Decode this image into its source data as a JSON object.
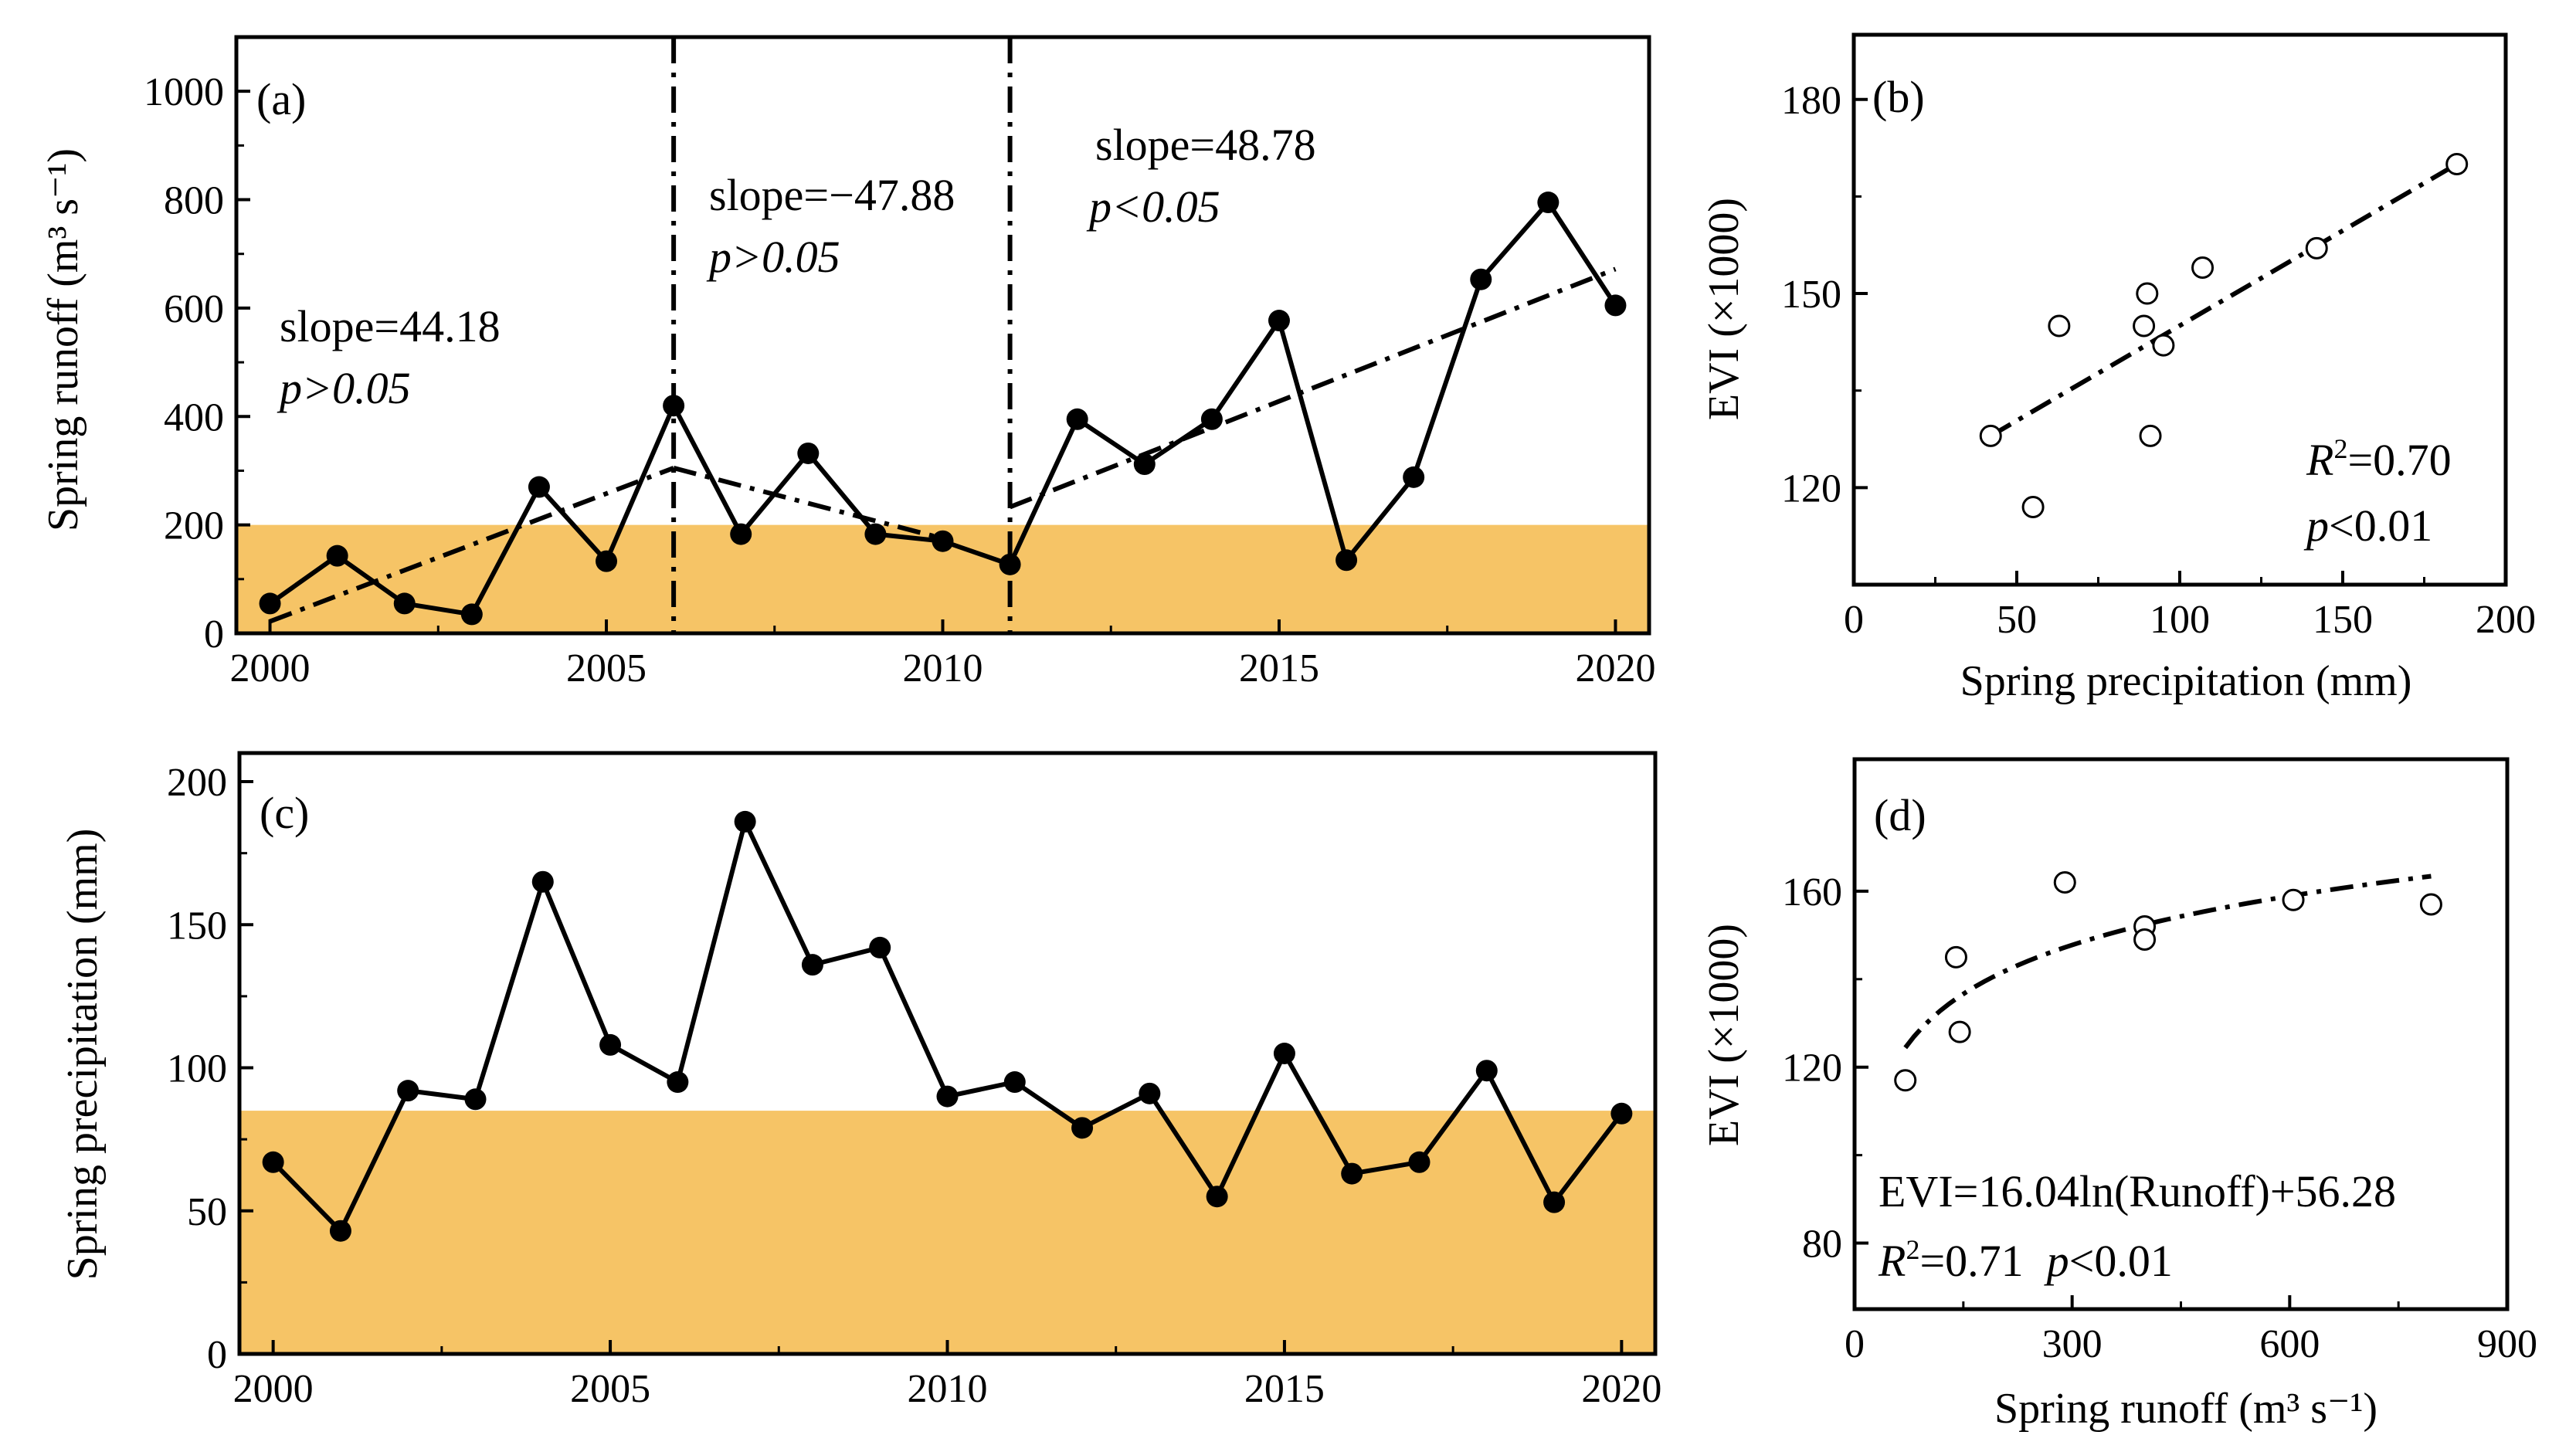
{
  "colors": {
    "shade": "#F6C466",
    "line": "#000000",
    "background": "#FFFFFF"
  },
  "chart_data": [
    {
      "panel": "(a)",
      "type": "line",
      "x": [
        2000,
        2001,
        2002,
        2003,
        2004,
        2005,
        2006,
        2007,
        2008,
        2009,
        2010,
        2011,
        2012,
        2013,
        2014,
        2015,
        2016,
        2017,
        2018,
        2019,
        2020
      ],
      "values": [
        55,
        143,
        55,
        35,
        270,
        133,
        420,
        183,
        332,
        183,
        170,
        127,
        395,
        312,
        395,
        577,
        135,
        288,
        653,
        795,
        605
      ],
      "xlim": [
        1999.5,
        2020.5
      ],
      "ylim": [
        0,
        1100
      ],
      "xticks": [
        2000,
        2005,
        2010,
        2015,
        2020
      ],
      "yticks": [
        0,
        200,
        400,
        600,
        800,
        1000
      ],
      "ylabel": "Spring runoff (m³ s⁻¹)",
      "shade_below": 200,
      "breakpoints": [
        2006,
        2011
      ],
      "trends": [
        {
          "x0": 2000,
          "y0": 22,
          "x1": 2006,
          "y1": 305,
          "slope_label": "slope=44.18",
          "p_label": "p>0.05"
        },
        {
          "x0": 2006,
          "y0": 305,
          "x1": 2010,
          "y1": 175,
          "slope_label": "slope=−47.88",
          "p_label": "p>0.05"
        },
        {
          "x0": 2011,
          "y0": 233,
          "x1": 2020,
          "y1": 672,
          "slope_label": "slope=48.78",
          "p_label": "p<0.05"
        }
      ]
    },
    {
      "panel": "(b)",
      "type": "scatter",
      "x": [
        42,
        55,
        63,
        89,
        90,
        91,
        95,
        107,
        142,
        185
      ],
      "y": [
        128,
        117,
        145,
        145,
        150,
        128,
        142,
        154,
        157,
        170
      ],
      "xlim": [
        0,
        200
      ],
      "ylim": [
        105,
        190
      ],
      "xticks": [
        0,
        50,
        100,
        150,
        200
      ],
      "yticks": [
        120,
        150,
        180
      ],
      "xlabel": "Spring precipitation (mm)",
      "ylabel": "EVI (×1000)",
      "fit": {
        "type": "linear",
        "x0": 42,
        "y0": 128,
        "x1": 185,
        "y1": 170
      },
      "r2_text": "=0.70",
      "p_text": "<0.01"
    },
    {
      "panel": "(c)",
      "type": "line",
      "x": [
        2000,
        2001,
        2002,
        2003,
        2004,
        2005,
        2006,
        2007,
        2008,
        2009,
        2010,
        2011,
        2012,
        2013,
        2014,
        2015,
        2016,
        2017,
        2018,
        2019,
        2020
      ],
      "values": [
        67,
        43,
        92,
        89,
        165,
        108,
        95,
        186,
        136,
        142,
        90,
        95,
        79,
        91,
        55,
        105,
        63,
        67,
        99,
        53,
        84
      ],
      "xlim": [
        1999.5,
        2020.5
      ],
      "ylim": [
        0,
        210
      ],
      "xticks": [
        2000,
        2005,
        2010,
        2015,
        2020
      ],
      "yticks": [
        0,
        50,
        100,
        150,
        200
      ],
      "ylabel": "Spring precipitation (mm)",
      "shade_below": 85
    },
    {
      "panel": "(d)",
      "type": "scatter",
      "x": [
        70,
        140,
        145,
        290,
        400,
        400,
        605,
        795
      ],
      "y": [
        117,
        145,
        128,
        162,
        152,
        149,
        158,
        157
      ],
      "xlim": [
        0,
        900
      ],
      "ylim": [
        65,
        190
      ],
      "xticks": [
        0,
        300,
        600,
        900
      ],
      "yticks": [
        80,
        120,
        160
      ],
      "xlabel": "Spring runoff (m³ s⁻¹)",
      "ylabel": "EVI (×1000)",
      "fit": {
        "type": "log",
        "a": 16.04,
        "b": 56.28,
        "x_from": 70,
        "x_to": 795
      },
      "equation": "EVI=16.04ln(Runoff)+56.28",
      "r2_text": "=0.71",
      "p_text": "<0.01"
    }
  ]
}
